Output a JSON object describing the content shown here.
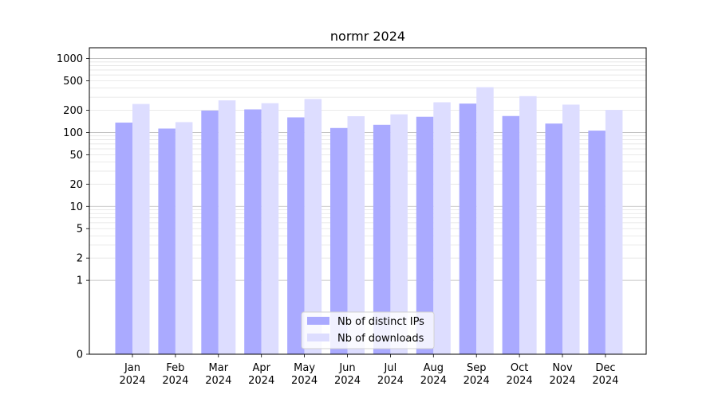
{
  "chart_data": {
    "type": "bar",
    "title": "normr 2024",
    "xlabel": "",
    "ylabel": "",
    "yscale": "symlog",
    "ylim": [
      0,
      1400
    ],
    "y_ticks": [
      0,
      1,
      2,
      5,
      10,
      20,
      50,
      100,
      200,
      500,
      1000
    ],
    "categories": [
      [
        "Jan",
        "2024"
      ],
      [
        "Feb",
        "2024"
      ],
      [
        "Mar",
        "2024"
      ],
      [
        "Apr",
        "2024"
      ],
      [
        "May",
        "2024"
      ],
      [
        "Jun",
        "2024"
      ],
      [
        "Jul",
        "2024"
      ],
      [
        "Aug",
        "2024"
      ],
      [
        "Sep",
        "2024"
      ],
      [
        "Oct",
        "2024"
      ],
      [
        "Nov",
        "2024"
      ],
      [
        "Dec",
        "2024"
      ]
    ],
    "series": [
      {
        "name": "Nb of distinct IPs",
        "color": "#aaaaff",
        "values": [
          136,
          113,
          198,
          205,
          160,
          115,
          127,
          163,
          246,
          167,
          132,
          106
        ]
      },
      {
        "name": "Nb of downloads",
        "color": "#ddddff",
        "values": [
          243,
          138,
          272,
          249,
          284,
          166,
          176,
          256,
          410,
          310,
          238,
          202
        ]
      }
    ],
    "grid": true,
    "legend_position": "lower-center"
  }
}
